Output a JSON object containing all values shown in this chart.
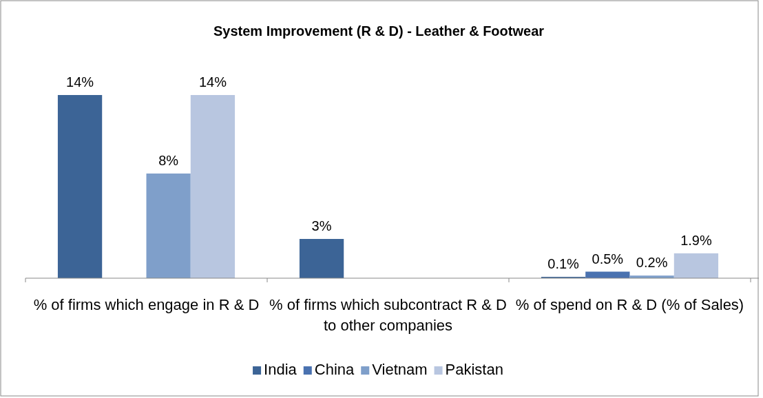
{
  "chart_data": {
    "type": "bar",
    "title": "System Improvement (R & D) - Leather & Footwear",
    "categories": [
      "% of firms which engage in R & D",
      "% of firms which subcontract R & D to other companies",
      "% of spend on R & D (% of Sales)"
    ],
    "series": [
      {
        "name": "India",
        "color": "#3c6496",
        "values": [
          14,
          3,
          0.1
        ],
        "value_labels": [
          "14%",
          "3%",
          "0.1%"
        ]
      },
      {
        "name": "China",
        "color": "#4a72b0",
        "values": [
          null,
          null,
          0.5
        ],
        "value_labels": [
          null,
          null,
          "0.5%"
        ]
      },
      {
        "name": "Vietnam",
        "color": "#7f9fca",
        "values": [
          8,
          null,
          0.2
        ],
        "value_labels": [
          "8%",
          null,
          "0.2%"
        ]
      },
      {
        "name": "Pakistan",
        "color": "#b8c6e0",
        "values": [
          14,
          null,
          1.9
        ],
        "value_labels": [
          "14%",
          null,
          "1.9%"
        ]
      }
    ],
    "legend": "bottom"
  }
}
